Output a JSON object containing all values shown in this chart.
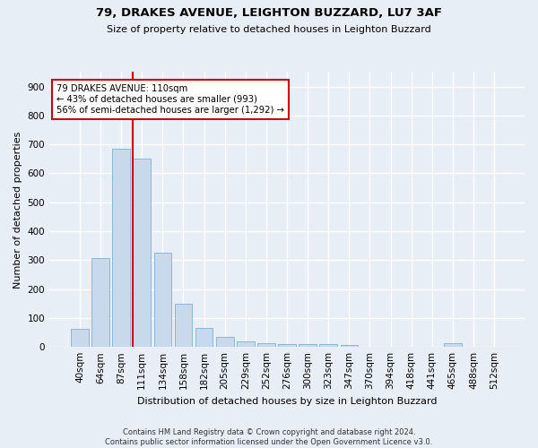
{
  "title": "79, DRAKES AVENUE, LEIGHTON BUZZARD, LU7 3AF",
  "subtitle": "Size of property relative to detached houses in Leighton Buzzard",
  "xlabel": "Distribution of detached houses by size in Leighton Buzzard",
  "ylabel": "Number of detached properties",
  "footnote": "Contains HM Land Registry data © Crown copyright and database right 2024.\nContains public sector information licensed under the Open Government Licence v3.0.",
  "bar_labels": [
    "40sqm",
    "64sqm",
    "87sqm",
    "111sqm",
    "134sqm",
    "158sqm",
    "182sqm",
    "205sqm",
    "229sqm",
    "252sqm",
    "276sqm",
    "300sqm",
    "323sqm",
    "347sqm",
    "370sqm",
    "394sqm",
    "418sqm",
    "441sqm",
    "465sqm",
    "488sqm",
    "512sqm"
  ],
  "bar_values": [
    62,
    308,
    685,
    650,
    325,
    150,
    65,
    35,
    20,
    12,
    10,
    10,
    10,
    8,
    0,
    0,
    0,
    0,
    12,
    0,
    0
  ],
  "bar_color": "#c9d9ec",
  "bar_edge_color": "#7fafd4",
  "background_color": "#e8eef6",
  "grid_color": "#ffffff",
  "property_line_color": "#cc0000",
  "annotation_text": "79 DRAKES AVENUE: 110sqm\n← 43% of detached houses are smaller (993)\n56% of semi-detached houses are larger (1,292) →",
  "annotation_box_color": "#ffffff",
  "annotation_box_edge": "#cc0000",
  "ylim": [
    0,
    950
  ],
  "yticks": [
    0,
    100,
    200,
    300,
    400,
    500,
    600,
    700,
    800,
    900
  ],
  "title_fontsize": 9.5,
  "subtitle_fontsize": 8,
  "ylabel_fontsize": 8,
  "xlabel_fontsize": 8,
  "tick_fontsize": 7.5,
  "footnote_fontsize": 6
}
